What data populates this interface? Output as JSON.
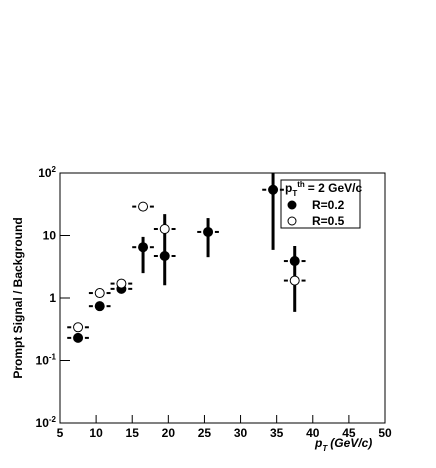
{
  "chart_data": {
    "type": "scatter",
    "xlabel": {
      "base": "p",
      "sub": "T",
      "rest": "(GeV/c)"
    },
    "ylabel": "Prompt Signal / Background",
    "xlim": [
      5,
      50
    ],
    "xticks": [
      5,
      10,
      15,
      20,
      25,
      30,
      35,
      40,
      45,
      50
    ],
    "ylim": [
      0.01,
      100
    ],
    "log_y": true,
    "yticks": [
      {
        "value": 0.01,
        "label": "10^-2"
      },
      {
        "value": 0.1,
        "label": "10^-1"
      },
      1,
      10,
      {
        "value": 100,
        "label": "10^2"
      }
    ],
    "legend_title": {
      "base": "p",
      "sub": "T",
      "sup": "th",
      "rest": "= 2 GeV/c"
    },
    "legend_position": "upper right",
    "series": [
      {
        "name": "R=0.2",
        "color": "#000000",
        "marker": "filled",
        "x": [
          7.5,
          10.5,
          13.5,
          16.5,
          19.5,
          25.5,
          34.5,
          37.5
        ],
        "values": [
          0.23,
          0.74,
          1.4,
          6.5,
          4.7,
          11.4,
          54,
          3.9
        ],
        "xerr": [
          1.5,
          1.5,
          1.5,
          1.5,
          1.5,
          1.5,
          1.5,
          1.5
        ],
        "ylow": [
          null,
          null,
          null,
          2.5,
          1.6,
          4.5,
          5.9,
          0.6
        ],
        "yhigh": [
          null,
          null,
          null,
          9.5,
          22,
          19,
          100,
          6.8
        ]
      },
      {
        "name": "R=0.5",
        "color": "#000000",
        "marker": "open",
        "x": [
          7.5,
          10.5,
          13.5,
          16.5,
          19.5,
          37.5
        ],
        "values": [
          0.34,
          1.2,
          1.7,
          29,
          12.7,
          1.9
        ],
        "xerr": [
          1.5,
          1.5,
          1.5,
          1.5,
          1.5,
          1.5
        ]
      }
    ]
  }
}
